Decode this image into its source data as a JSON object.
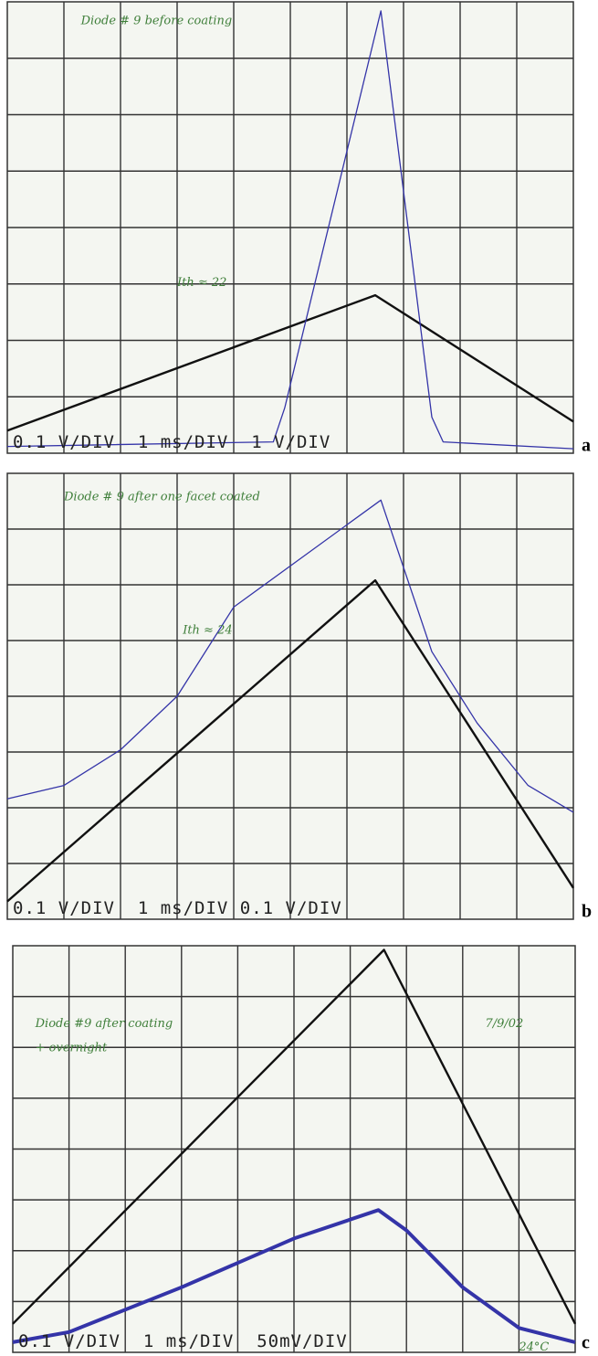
{
  "panels": [
    {
      "label": "a",
      "notes": [
        "Diode # 9 before coating",
        "Ith ≈ 22"
      ],
      "readout": "0.1 V/DIV  1 ms/DIV  1 V/DIV"
    },
    {
      "label": "b",
      "notes": [
        "Diode # 9 after one facet coated",
        "Ith ≈ 24"
      ],
      "readout": "0.1 V/DIV  1 ms/DIV 0.1 V/DIV"
    },
    {
      "label": "c",
      "notes": [
        "Diode #9 after coating",
        "+ overnight",
        "7/9/02",
        "24°C"
      ],
      "readout": "0.1 V/DIV  1 ms/DIV  50mV/DIV"
    }
  ]
}
